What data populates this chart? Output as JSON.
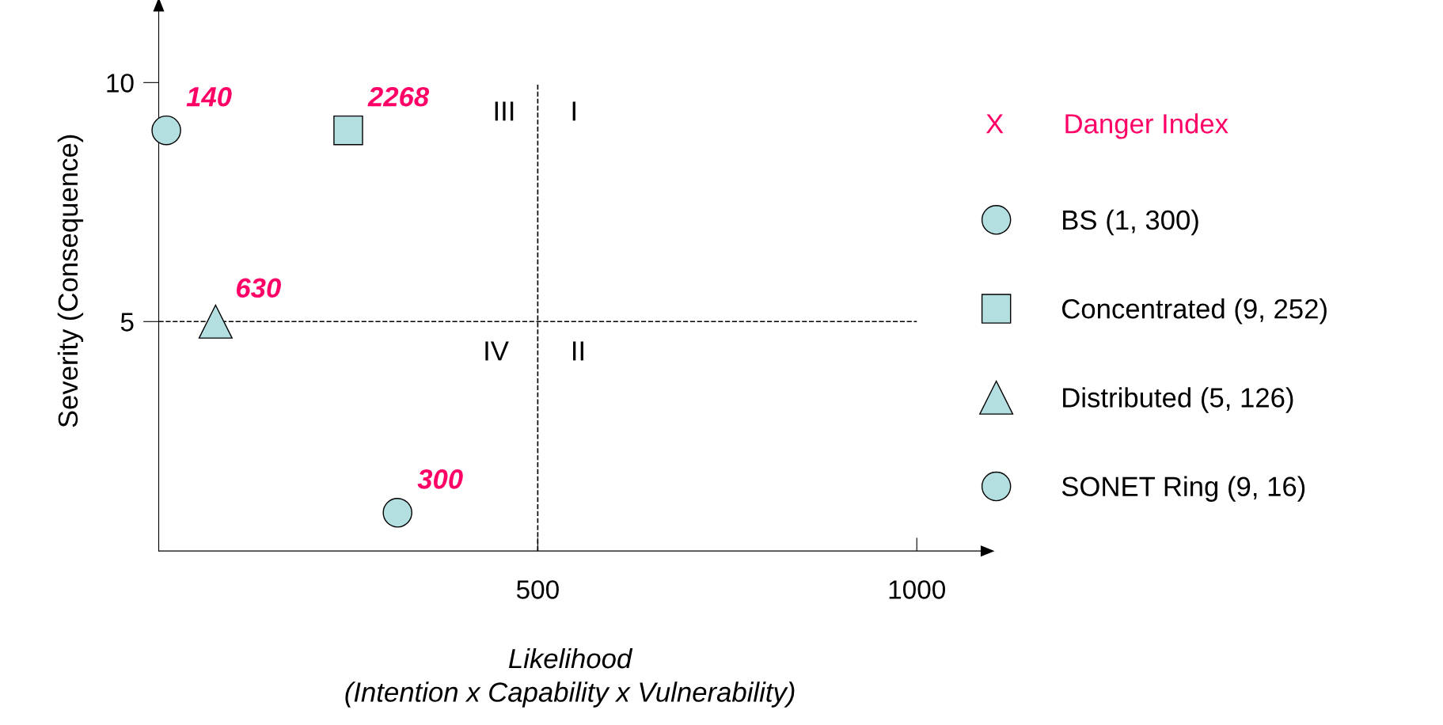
{
  "chart_data": {
    "type": "scatter",
    "xlabel": "Likelihood\n(Intention x Capability x Vulnerability)",
    "ylabel": "Severity (Consequence)",
    "xlim": [
      0,
      1085
    ],
    "ylim": [
      0.2,
      11.5
    ],
    "xticks": [
      500,
      1000
    ],
    "yticks": [
      5,
      10
    ],
    "grid": false,
    "legend": "right",
    "series": [
      {
        "name": "BS (1, 300)",
        "color": "#b4dfe0",
        "marker": "circle",
        "x": [
          315
        ],
        "values": [
          1
        ]
      },
      {
        "name": "Concentrated (9, 252)",
        "color": "#b4dfe0",
        "marker": "square",
        "x": [
          250
        ],
        "values": [
          9
        ]
      },
      {
        "name": "Distributed (5, 126)",
        "color": "#b4dfe0",
        "marker": "triangle",
        "x": [
          75
        ],
        "values": [
          5
        ]
      },
      {
        "name": "SONET Ring (9, 16)",
        "color": "#b4dfe0",
        "marker": "circle",
        "x": [
          10
        ],
        "values": [
          9
        ]
      }
    ],
    "ref_lines": [
      {
        "axis": "x",
        "value": 500,
        "line_style": "dashed",
        "color": "#000000"
      },
      {
        "axis": "y",
        "value": 5,
        "line_style": "dashed",
        "color": "#000000"
      }
    ],
    "annotations": [
      {
        "text": "300",
        "x": 315,
        "y": 1
      },
      {
        "text": "2268",
        "x": 250,
        "y": 9
      },
      {
        "text": "630",
        "x": 75,
        "y": 5
      },
      {
        "text": "140",
        "x": 10,
        "y": 9
      },
      "III",
      "I",
      "IV",
      "II",
      "X",
      "Danger Index"
    ]
  }
}
